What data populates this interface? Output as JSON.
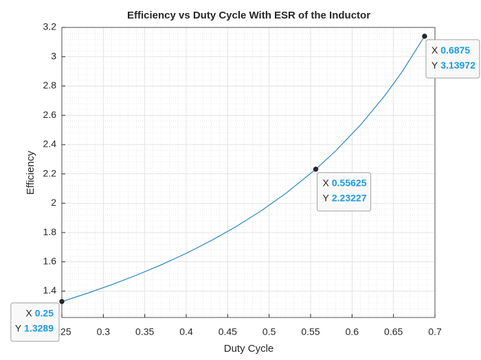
{
  "chart_data": {
    "type": "line",
    "title": "Efficiency vs Duty Cycle With ESR of the Inductor",
    "x_label": "Duty Cycle",
    "y_label": "Efficiency",
    "x": [
      0.25,
      0.28,
      0.31,
      0.34,
      0.37,
      0.4,
      0.43,
      0.46,
      0.49,
      0.52,
      0.55625,
      0.58,
      0.61,
      0.64,
      0.66,
      0.6875
    ],
    "series": [
      {
        "name": "Efficiency",
        "color": "#0072bd",
        "values": [
          1.3289,
          1.38389,
          1.44359,
          1.50866,
          1.57984,
          1.65803,
          1.74432,
          1.84001,
          1.94675,
          2.06652,
          2.23227,
          2.35591,
          2.53288,
          2.73817,
          2.89423,
          3.13972
        ]
      }
    ],
    "xlim": [
      0.25,
      0.7
    ],
    "xticks": [
      0.25,
      0.3,
      0.35,
      0.4,
      0.45,
      0.5,
      0.55,
      0.6,
      0.65,
      0.7
    ],
    "ylim": [
      1.22,
      3.2
    ],
    "yticks": [
      1.4,
      1.6,
      1.8,
      2,
      2.2,
      2.4,
      2.6,
      2.8,
      3,
      3.2
    ],
    "grid": true,
    "minor_grid": true,
    "datatip_labels": [
      "X",
      "Y"
    ],
    "datatips": [
      {
        "x": 0.25,
        "y": 1.3289
      },
      {
        "x": 0.55625,
        "y": 2.23227
      },
      {
        "x": 0.6875,
        "y": 3.13972
      }
    ]
  }
}
